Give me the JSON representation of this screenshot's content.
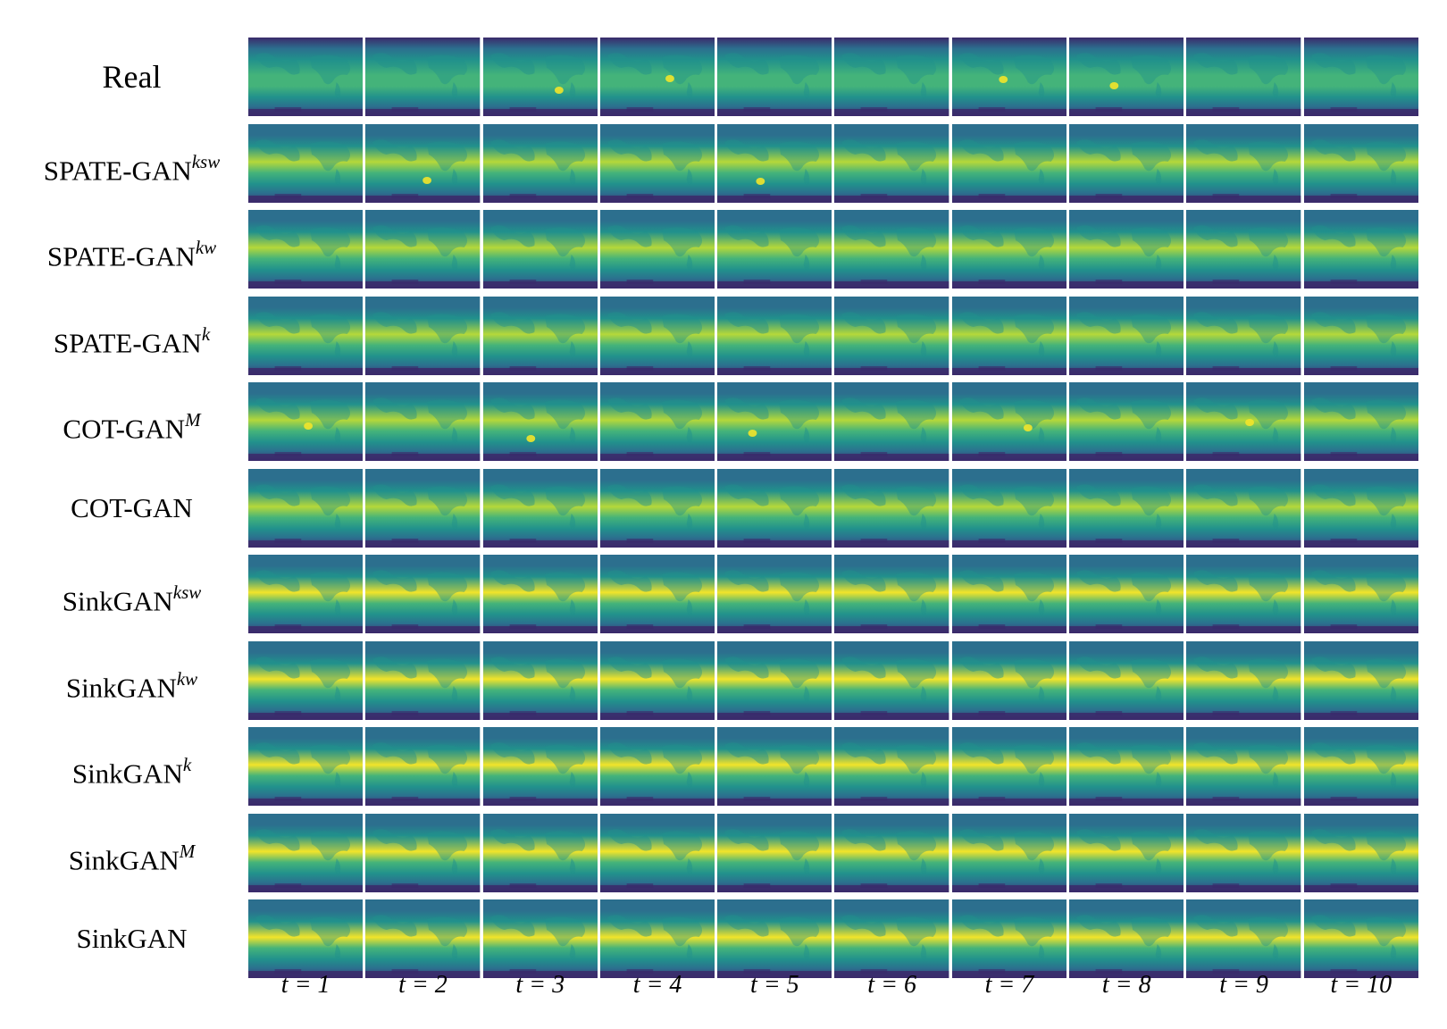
{
  "rows": [
    {
      "name": "Real",
      "sup": ""
    },
    {
      "name": "SPATE-GAN",
      "sup": "ksw"
    },
    {
      "name": "SPATE-GAN",
      "sup": "kw"
    },
    {
      "name": "SPATE-GAN",
      "sup": "k"
    },
    {
      "name": "COT-GAN",
      "sup": "M"
    },
    {
      "name": "COT-GAN",
      "sup": ""
    },
    {
      "name": "SinkGAN",
      "sup": "ksw"
    },
    {
      "name": "SinkGAN",
      "sup": "kw"
    },
    {
      "name": "SinkGAN",
      "sup": "k"
    },
    {
      "name": "SinkGAN",
      "sup": "M"
    },
    {
      "name": "SinkGAN",
      "sup": ""
    }
  ],
  "time_labels": [
    "t = 1",
    "t = 2",
    "t = 3",
    "t = 4",
    "t = 5",
    "t = 6",
    "t = 7",
    "t = 8",
    "t = 9",
    "t = 10"
  ],
  "colormap": {
    "dark": "#3b2a6b",
    "deep_teal": "#2c6f8e",
    "teal": "#21918c",
    "green": "#44b37a",
    "lime": "#b5d83a",
    "yellow": "#f2e42a"
  }
}
